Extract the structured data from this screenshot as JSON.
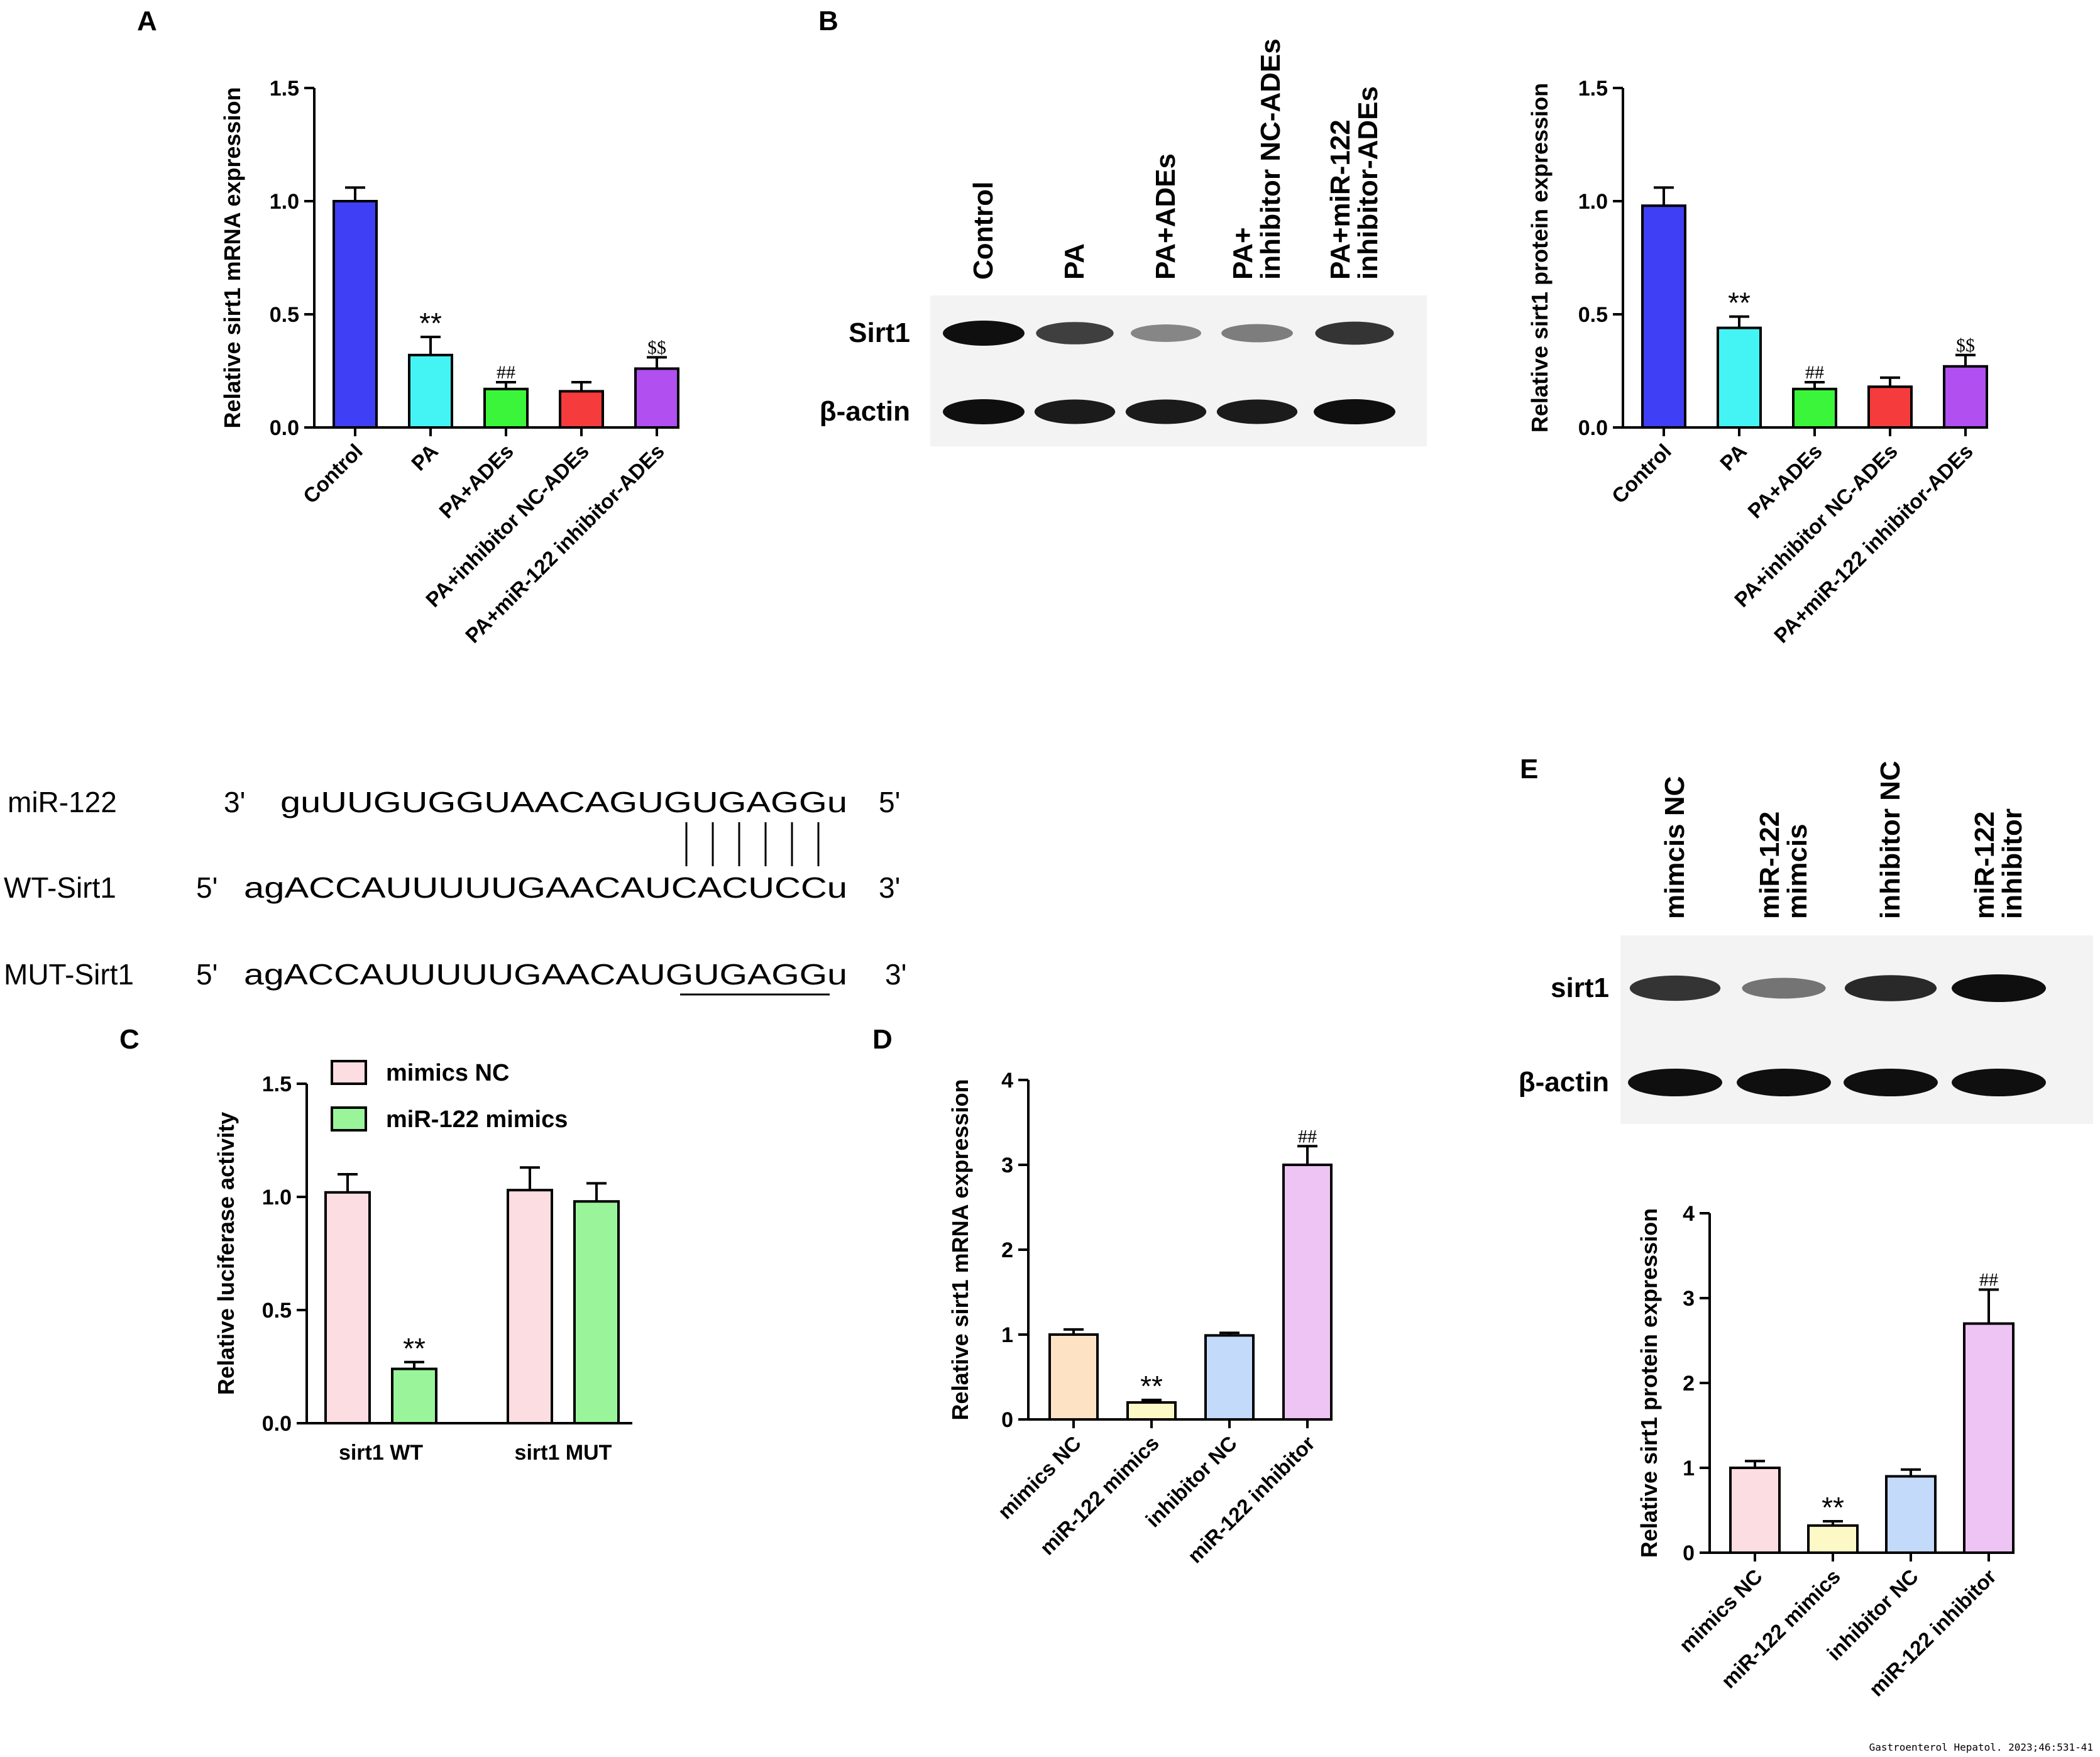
{
  "panel_labels": {
    "a": "A",
    "b": "B",
    "c": "C",
    "d": "D",
    "e": "E"
  },
  "footer": "Gastroenterol Hepatol. 2023;46:531-41",
  "colors": {
    "blue": "#3f3ff5",
    "cyan": "#44f4f4",
    "green": "#3bf53b",
    "red": "#f53b3b",
    "purple": "#b14ff0",
    "pink": "#fcdde1",
    "lightgreen": "#9af59a",
    "peach": "#fde2c4",
    "cream": "#fdf9c6",
    "lightblue": "#c4dafa",
    "lavender": "#eec4f4"
  },
  "chart_data": [
    {
      "id": "A",
      "type": "bar",
      "ylabel": "Relative sirt1 mRNA expression",
      "ylim": [
        0,
        1.5
      ],
      "yticks": [
        "0.0",
        "0.5",
        "1.0",
        "1.5"
      ],
      "categories": [
        "Control",
        "PA",
        "PA+ADEs",
        "PA+inhibitor NC-ADEs",
        "PA+miR-122 inhibitor-ADEs"
      ],
      "values": [
        1.0,
        0.32,
        0.17,
        0.16,
        0.26
      ],
      "errors": [
        0.06,
        0.08,
        0.03,
        0.04,
        0.05
      ],
      "colors": [
        "#3f3ff5",
        "#44f4f4",
        "#3bf53b",
        "#f53b3b",
        "#b14ff0"
      ],
      "annotations": [
        "",
        "**",
        "##",
        "",
        "$$"
      ]
    },
    {
      "id": "B",
      "type": "bar",
      "ylabel": "Relative sirt1 protein expression",
      "ylim": [
        0,
        1.5
      ],
      "yticks": [
        "0.0",
        "0.5",
        "1.0",
        "1.5"
      ],
      "categories": [
        "Control",
        "PA",
        "PA+ADEs",
        "PA+inhibitor NC-ADEs",
        "PA+miR-122 inhibitor-ADEs"
      ],
      "values": [
        0.98,
        0.44,
        0.17,
        0.18,
        0.27
      ],
      "errors": [
        0.08,
        0.05,
        0.03,
        0.04,
        0.05
      ],
      "colors": [
        "#3f3ff5",
        "#44f4f4",
        "#3bf53b",
        "#f53b3b",
        "#b14ff0"
      ],
      "annotations": [
        "",
        "**",
        "##",
        "",
        "$$"
      ]
    },
    {
      "id": "C",
      "type": "bar",
      "ylabel": "Relative luciferase activity",
      "ylim": [
        0,
        1.5
      ],
      "yticks": [
        "0.0",
        "0.5",
        "1.0",
        "1.5"
      ],
      "categories": [
        "sirt1 WT",
        "sirt1 MUT"
      ],
      "series": [
        {
          "name": "mimics NC",
          "values": [
            1.02,
            1.03
          ],
          "errors": [
            0.08,
            0.1
          ],
          "color": "#fcdde1"
        },
        {
          "name": "miR-122 mimics",
          "values": [
            0.24,
            0.98
          ],
          "errors": [
            0.03,
            0.08
          ],
          "color": "#9af59a"
        }
      ],
      "annotations": [
        [
          "",
          "**"
        ],
        [
          "",
          ""
        ]
      ],
      "legend": "top"
    },
    {
      "id": "D",
      "type": "bar",
      "ylabel": "Relative sirt1 mRNA expression",
      "ylim": [
        0,
        4
      ],
      "yticks": [
        "0",
        "1",
        "2",
        "3",
        "4"
      ],
      "categories": [
        "mimics NC",
        "miR-122 mimics",
        "inhibitor NC",
        "miR-122 inhibitor"
      ],
      "values": [
        1.0,
        0.2,
        0.99,
        3.0
      ],
      "errors": [
        0.06,
        0.03,
        0.03,
        0.22
      ],
      "colors": [
        "#fde2c4",
        "#fdf9c6",
        "#c4dafa",
        "#eec4f4"
      ],
      "annotations": [
        "",
        "**",
        "",
        "##"
      ]
    },
    {
      "id": "E",
      "type": "bar",
      "ylabel": "Relative sirt1 protein expression",
      "ylim": [
        0,
        4
      ],
      "yticks": [
        "0",
        "1",
        "2",
        "3",
        "4"
      ],
      "categories": [
        "mimics NC",
        "miR-122 mimics",
        "inhibitor NC",
        "miR-122 inhibitor"
      ],
      "values": [
        1.0,
        0.32,
        0.9,
        2.7
      ],
      "errors": [
        0.08,
        0.05,
        0.08,
        0.4
      ],
      "colors": [
        "#fcdde1",
        "#fdf9c6",
        "#c4dafa",
        "#eec4f4"
      ],
      "annotations": [
        "",
        "**",
        "",
        "##"
      ]
    }
  ],
  "blot_b": {
    "lanes": [
      "Control",
      "PA",
      "PA+ADEs",
      "PA+\ninhibitor NC-ADEs",
      "PA+miR-122\ninhibitor-ADEs"
    ],
    "bands": [
      {
        "label": "Sirt1",
        "intensity": [
          1.0,
          0.8,
          0.45,
          0.5,
          0.85
        ]
      },
      {
        "label": "β-actin",
        "intensity": [
          1.0,
          0.95,
          0.95,
          0.95,
          1.0
        ]
      }
    ]
  },
  "blot_e": {
    "lanes": [
      "mimcis NC",
      "miR-122\nmimcis",
      "inhibitor NC",
      "miR-122\ninhibitor"
    ],
    "bands": [
      {
        "label": "sirt1",
        "intensity": [
          0.85,
          0.55,
          0.9,
          1.0
        ]
      },
      {
        "label": "β-actin",
        "intensity": [
          1.0,
          1.0,
          1.0,
          1.0
        ]
      }
    ]
  },
  "sequence": {
    "rows": [
      {
        "name": "miR-122",
        "end5": "3'",
        "text": "guUUGUGGUAACAGUGUGAGGu",
        "end3": "5'"
      },
      {
        "name": "WT-Sirt1",
        "end5": "5'",
        "text": "agACCAUUUUUGAACAUCACUCCu",
        "end3": "3'"
      },
      {
        "name": "MUT-Sirt1",
        "end5": "5'",
        "text": "agACCAUUUUUGAACAUGUGAGGu",
        "end3": "3'"
      }
    ]
  }
}
